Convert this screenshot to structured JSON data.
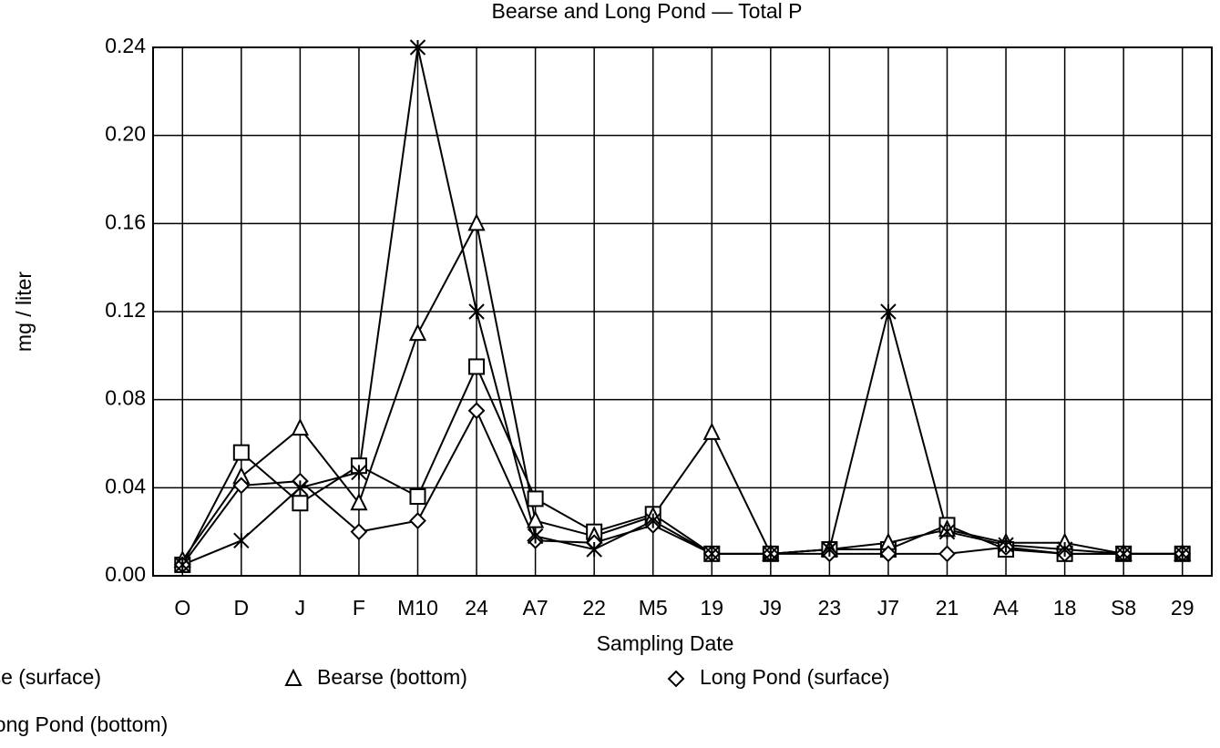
{
  "chart_data": {
    "type": "line",
    "title": "Bearse and Long Pond — Total P",
    "x_label": "Sampling Date",
    "y_label": "mg / liter",
    "categories": [
      "O",
      "D",
      "J",
      "F",
      "M10",
      "24",
      "A7",
      "22",
      "M5",
      "19",
      "J9",
      "23",
      "J7",
      "21",
      "A4",
      "18",
      "S8",
      "29"
    ],
    "ylim": [
      0,
      0.24
    ],
    "yticks": [
      {
        "value": 0,
        "label": "0.00"
      },
      {
        "value": 0.04,
        "label": "0.04"
      },
      {
        "value": 0.08,
        "label": "0.08"
      },
      {
        "value": 0.12,
        "label": "0.12"
      },
      {
        "value": 0.16,
        "label": "0.16"
      },
      {
        "value": 0.2,
        "label": "0.20"
      },
      {
        "value": 0.24,
        "label": "0.24"
      }
    ],
    "grid": true,
    "series": [
      {
        "name": "Bearse (surface)",
        "color": "#000000",
        "marker": "square",
        "values": [
          0.005,
          0.056,
          0.033,
          0.05,
          0.036,
          0.095,
          0.035,
          0.02,
          0.028,
          0.01,
          0.01,
          0.012,
          0.012,
          0.023,
          0.012,
          0.01,
          0.01,
          0.01
        ]
      },
      {
        "name": "Bearse (bottom)",
        "color": "#000000",
        "marker": "triangle",
        "values": [
          0.007,
          0.045,
          0.067,
          0.033,
          0.11,
          0.16,
          0.025,
          0.018,
          0.027,
          0.065,
          0.01,
          0.012,
          0.015,
          0.021,
          0.015,
          0.015,
          0.01,
          0.01
        ]
      },
      {
        "name": "Long Pond (surface)",
        "color": "#000000",
        "marker": "diamond",
        "values": [
          0.005,
          0.041,
          0.043,
          0.02,
          0.025,
          0.075,
          0.016,
          0.015,
          0.023,
          0.01,
          0.01,
          0.01,
          0.01,
          0.01,
          0.013,
          0.01,
          0.01,
          0.01
        ]
      },
      {
        "name": "Long Pond (bottom)",
        "color": "#000000",
        "marker": "x",
        "values": [
          0.005,
          0.016,
          0.04,
          0.047,
          0.24,
          0.12,
          0.018,
          0.012,
          0.025,
          0.01,
          0.01,
          0.012,
          0.12,
          0.02,
          0.014,
          0.012,
          0.01,
          0.01
        ]
      }
    ]
  }
}
